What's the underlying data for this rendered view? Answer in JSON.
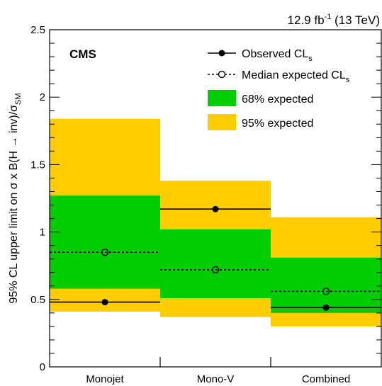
{
  "chart_data": {
    "type": "bar",
    "categories": [
      "Monojet",
      "Mono-V",
      "Combined"
    ],
    "ylabel": "95% CL upper limit on σ x B(H → inv)/σ",
    "ylabel_sub": "SM",
    "ylim": [
      0,
      2.5
    ],
    "yticks": [
      "0",
      "0.5",
      "1",
      "1.5",
      "2",
      "2.5"
    ],
    "lumi_value": "12.9 fb",
    "lumi_exp": "-1",
    "lumi_energy": " (13 TeV)",
    "experiment": "CMS",
    "series": [
      {
        "name": "Observed CL",
        "name_sub": "s",
        "values": [
          0.48,
          1.17,
          0.44
        ]
      },
      {
        "name": "Median expected CL",
        "name_sub": "s",
        "values": [
          0.85,
          0.72,
          0.56
        ]
      }
    ],
    "band_68": {
      "name": "68% expected",
      "low": [
        0.58,
        0.51,
        0.4
      ],
      "high": [
        1.27,
        1.02,
        0.81
      ]
    },
    "band_95": {
      "name": "95% expected",
      "low": [
        0.41,
        0.37,
        0.3
      ],
      "high": [
        1.84,
        1.38,
        1.11
      ]
    },
    "colors": {
      "band_68": "#00cc00",
      "band_95": "#ffcc00",
      "line": "#000000"
    },
    "legend_position": "top-right",
    "grid": false
  }
}
